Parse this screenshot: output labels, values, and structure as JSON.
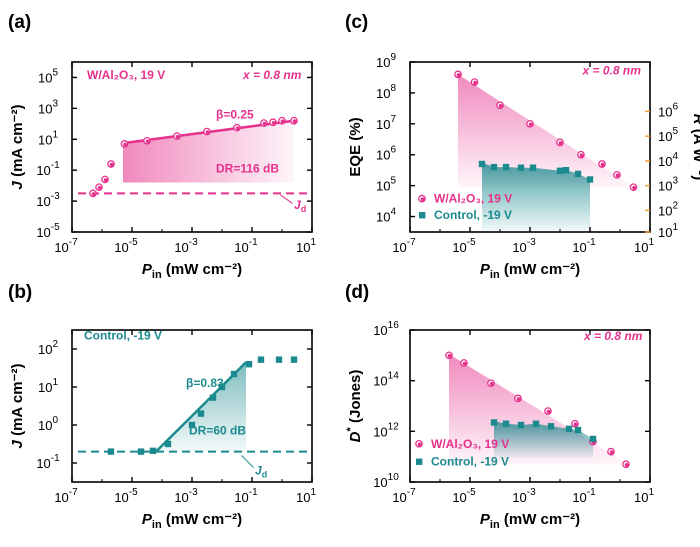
{
  "colors": {
    "pink": "#e5318c",
    "teal": "#1b8a8e",
    "orange": "#f39a29",
    "black": "#000000"
  },
  "chart_data": [
    {
      "id": "a",
      "panel_label": "(a)",
      "type": "scatter",
      "title": "",
      "xlabel_main": "P",
      "xlabel_sub": "in",
      "xlabel_unit": " (mW cm⁻²)",
      "ylabel_main": "J",
      "ylabel_unit": " (mA cm⁻²)",
      "xlim_log": [
        -7,
        1
      ],
      "ylim_log": [
        -5,
        6
      ],
      "xticks": [
        {
          "e": -7,
          "text": "-7"
        },
        {
          "e": -5,
          "text": "-5"
        },
        {
          "e": -3,
          "text": "-3"
        },
        {
          "e": -1,
          "text": "-1"
        },
        {
          "e": 1,
          "text": "1"
        }
      ],
      "yticks": [
        {
          "e": -5,
          "text": "-5"
        },
        {
          "e": -3,
          "text": "-3"
        },
        {
          "e": -1,
          "text": "-1"
        },
        {
          "e": 1,
          "text": "1"
        },
        {
          "e": 3,
          "text": "3"
        },
        {
          "e": 5,
          "text": "5"
        }
      ],
      "series": [
        {
          "name": "W/Al2O3, 19 V",
          "color": "pink",
          "marker": "circle",
          "points": [
            [
              -6.3,
              -2.5
            ],
            [
              -6.1,
              -2.1
            ],
            [
              -5.9,
              -1.6
            ],
            [
              -5.7,
              -0.6
            ],
            [
              -5.25,
              0.7
            ],
            [
              -4.5,
              0.9
            ],
            [
              -3.5,
              1.2
            ],
            [
              -2.5,
              1.5
            ],
            [
              -1.5,
              1.75
            ],
            [
              -0.6,
              2.05
            ],
            [
              -0.3,
              2.1
            ],
            [
              0,
              2.2
            ],
            [
              0.4,
              2.2
            ]
          ]
        }
      ],
      "fit_line": {
        "color": "pink",
        "points": [
          [
            -5.3,
            0.75
          ],
          [
            0.4,
            2.2
          ]
        ]
      },
      "shade": {
        "color": "pink",
        "polygon": [
          [
            -5.3,
            0.75
          ],
          [
            0.4,
            2.2
          ],
          [
            0.4,
            -1.8
          ],
          [
            -5.3,
            -1.8
          ]
        ],
        "opacity": 0.6
      },
      "dashed": {
        "color": "pink",
        "y": -2.5,
        "x1": -6.8,
        "x2": 1
      },
      "annotations": [
        {
          "text": "W/Al₂O₃, 19 V",
          "x": -6.5,
          "y": 4.9,
          "color": "pink",
          "size": 12
        },
        {
          "text": "x = 0.8 nm",
          "x": -1.3,
          "y": 4.9,
          "color": "pink",
          "size": 12,
          "italic": true
        },
        {
          "text": "β=0.25",
          "x": -2.2,
          "y": 2.35,
          "color": "pink",
          "size": 15
        },
        {
          "text": "DR=116 dB",
          "x": -2.2,
          "y": -1.15,
          "color": "pink",
          "size": 12
        },
        {
          "text": "J",
          "x": 0.4,
          "y": -3.5,
          "color": "pink",
          "size": 12,
          "italic": true,
          "sub": "d"
        }
      ]
    },
    {
      "id": "b",
      "panel_label": "(b)",
      "type": "scatter",
      "xlabel_main": "P",
      "xlabel_sub": "in",
      "xlabel_unit": " (mW cm⁻²)",
      "ylabel_main": "J",
      "ylabel_unit": " (mA cm⁻²)",
      "xlim_log": [
        -7,
        1
      ],
      "ylim_log": [
        -1.5,
        2.5
      ],
      "xticks": [
        {
          "e": -7,
          "text": "-7"
        },
        {
          "e": -5,
          "text": "-5"
        },
        {
          "e": -3,
          "text": "-3"
        },
        {
          "e": -1,
          "text": "-1"
        },
        {
          "e": 1,
          "text": "1"
        }
      ],
      "yticks": [
        {
          "e": -1,
          "text": "-1"
        },
        {
          "e": 0,
          "text": "0"
        },
        {
          "e": 1,
          "text": "1"
        },
        {
          "e": 2,
          "text": "2"
        }
      ],
      "series": [
        {
          "name": "Control, -19 V",
          "color": "teal",
          "marker": "square",
          "points": [
            [
              -5.7,
              -0.7
            ],
            [
              -4.7,
              -0.7
            ],
            [
              -4.3,
              -0.68
            ],
            [
              -3.8,
              -0.5
            ],
            [
              -3.0,
              0.0
            ],
            [
              -2.7,
              0.3
            ],
            [
              -2.3,
              0.72
            ],
            [
              -2.0,
              1.0
            ],
            [
              -1.6,
              1.34
            ],
            [
              -1.1,
              1.6
            ],
            [
              -0.7,
              1.72
            ],
            [
              -0.1,
              1.72
            ],
            [
              0.4,
              1.72
            ]
          ]
        }
      ],
      "fit_line": {
        "color": "teal",
        "points": [
          [
            -4.2,
            -0.7
          ],
          [
            -1.2,
            1.65
          ]
        ]
      },
      "shade": {
        "color": "teal",
        "polygon": [
          [
            -4.2,
            -0.7
          ],
          [
            -1.2,
            1.65
          ],
          [
            -1.2,
            -0.7
          ]
        ],
        "opacity": 0.6
      },
      "dashed": {
        "color": "teal",
        "y": -0.7,
        "x1": -6.8,
        "x2": 1
      },
      "annotations": [
        {
          "text": "Control, -19 V",
          "x": -6.6,
          "y": 2.25,
          "color": "teal",
          "size": 12
        },
        {
          "text": "β=0.83",
          "x": -3.2,
          "y": 1.0,
          "color": "teal",
          "size": 15
        },
        {
          "text": "DR=60 dB",
          "x": -3.1,
          "y": -0.25,
          "color": "teal",
          "size": 12
        },
        {
          "text": "J",
          "x": -0.9,
          "y": -1.3,
          "color": "teal",
          "size": 12,
          "italic": true,
          "sub": "d"
        }
      ]
    },
    {
      "id": "c",
      "panel_label": "(c)",
      "type": "scatter",
      "xlabel_main": "P",
      "xlabel_sub": "in",
      "xlabel_unit": " (mW cm⁻²)",
      "ylabel_left": "EQE (%)",
      "ylabel_right_main": "R",
      "ylabel_right_unit": " (A W⁻¹)",
      "xlim_log": [
        -7,
        1
      ],
      "ylim_log": [
        3.5,
        9
      ],
      "xticks": [
        {
          "e": -7,
          "text": "-7"
        },
        {
          "e": -5,
          "text": "-5"
        },
        {
          "e": -3,
          "text": "-3"
        },
        {
          "e": -1,
          "text": "-1"
        },
        {
          "e": 1,
          "text": "1"
        }
      ],
      "yticks": [
        {
          "e": 4,
          "text": "4"
        },
        {
          "e": 5,
          "text": "5"
        },
        {
          "e": 6,
          "text": "6"
        },
        {
          "e": 7,
          "text": "7"
        },
        {
          "e": 8,
          "text": "8"
        },
        {
          "e": 9,
          "text": "9"
        }
      ],
      "right_yticks": [
        {
          "e": 1,
          "text": "1",
          "pos": 3.5
        },
        {
          "e": 2,
          "text": "2",
          "pos": 4.2
        },
        {
          "e": 3,
          "text": "3",
          "pos": 5.0
        },
        {
          "e": 4,
          "text": "4",
          "pos": 5.8
        },
        {
          "e": 5,
          "text": "5",
          "pos": 6.6
        },
        {
          "e": 6,
          "text": "6",
          "pos": 7.4
        }
      ],
      "series": [
        {
          "name": "W/Al2O3, 19 V",
          "color": "pink",
          "marker": "circle",
          "points": [
            [
              -5.4,
              8.6
            ],
            [
              -4.85,
              8.35
            ],
            [
              -4.0,
              7.6
            ],
            [
              -3.0,
              7.0
            ],
            [
              -2.0,
              6.4
            ],
            [
              -1.3,
              6.0
            ],
            [
              -0.6,
              5.7
            ],
            [
              -0.1,
              5.35
            ],
            [
              0.45,
              4.95
            ]
          ]
        },
        {
          "name": "Control, -19 V",
          "color": "teal",
          "marker": "square",
          "points": [
            [
              -4.6,
              5.7
            ],
            [
              -4.2,
              5.6
            ],
            [
              -3.8,
              5.6
            ],
            [
              -3.3,
              5.58
            ],
            [
              -2.9,
              5.58
            ],
            [
              -2.0,
              5.48
            ],
            [
              -1.8,
              5.5
            ],
            [
              -1.4,
              5.38
            ],
            [
              -1.0,
              5.2
            ]
          ]
        }
      ],
      "shade": [
        {
          "color": "pink",
          "polygon": [
            [
              -5.4,
              8.6
            ],
            [
              0.45,
              4.95
            ],
            [
              -5.4,
              4.95
            ]
          ],
          "opacity": 0.6
        },
        {
          "color": "teal",
          "polygon": [
            [
              -4.6,
              5.75
            ],
            [
              -4.2,
              5.6
            ],
            [
              -3.8,
              5.6
            ],
            [
              -3.3,
              5.58
            ],
            [
              -2.9,
              5.58
            ],
            [
              -2.0,
              5.48
            ],
            [
              -1.8,
              5.5
            ],
            [
              -1.4,
              5.38
            ],
            [
              -1.0,
              5.2
            ],
            [
              -1.0,
              3.55
            ],
            [
              -4.6,
              3.55
            ]
          ],
          "opacity": 0.85
        }
      ],
      "legend": [
        {
          "text": "W/Al₂O₃, 19 V",
          "color": "pink",
          "marker": "circle",
          "x": -6.8,
          "y": 4.45
        },
        {
          "text": "Control, -19 V",
          "color": "teal",
          "marker": "square",
          "x": -6.8,
          "y": 3.92
        }
      ],
      "annotations": [
        {
          "text": "x = 0.8 nm",
          "x": -1.25,
          "y": 8.6,
          "color": "pink",
          "size": 12,
          "italic": true
        }
      ]
    },
    {
      "id": "d",
      "panel_label": "(d)",
      "type": "scatter",
      "xlabel_main": "P",
      "xlabel_sub": "in",
      "xlabel_unit": " (mW cm⁻²)",
      "ylabel_main": "D",
      "ylabel_sup": "*",
      "ylabel_unit": " (Jones)",
      "xlim_log": [
        -7,
        1
      ],
      "ylim_log": [
        10,
        16
      ],
      "xticks": [
        {
          "e": -7,
          "text": "-7"
        },
        {
          "e": -5,
          "text": "-5"
        },
        {
          "e": -3,
          "text": "-3"
        },
        {
          "e": -1,
          "text": "-1"
        },
        {
          "e": 1,
          "text": "1"
        }
      ],
      "yticks": [
        {
          "e": 10,
          "text": "10"
        },
        {
          "e": 12,
          "text": "12"
        },
        {
          "e": 14,
          "text": "14"
        },
        {
          "e": 16,
          "text": "16"
        }
      ],
      "series": [
        {
          "name": "W/Al2O3, 19 V",
          "color": "pink",
          "marker": "circle",
          "points": [
            [
              -5.7,
              15.0
            ],
            [
              -5.2,
              14.7
            ],
            [
              -4.3,
              13.9
            ],
            [
              -3.4,
              13.3
            ],
            [
              -2.4,
              12.8
            ],
            [
              -1.5,
              12.3
            ],
            [
              -0.9,
              11.6
            ],
            [
              -0.3,
              11.2
            ],
            [
              0.2,
              10.7
            ]
          ]
        },
        {
          "name": "Control, -19 V",
          "color": "teal",
          "marker": "square",
          "points": [
            [
              -4.2,
              12.35
            ],
            [
              -3.8,
              12.3
            ],
            [
              -3.3,
              12.25
            ],
            [
              -2.8,
              12.3
            ],
            [
              -2.3,
              12.2
            ],
            [
              -1.7,
              12.1
            ],
            [
              -1.4,
              12.05
            ],
            [
              -0.9,
              11.7
            ]
          ]
        }
      ],
      "shade": [
        {
          "color": "pink",
          "polygon": [
            [
              -5.7,
              15.05
            ],
            [
              0.25,
              10.7
            ],
            [
              -5.7,
              10.7
            ]
          ],
          "opacity": 0.6
        },
        {
          "color": "teal",
          "polygon": [
            [
              -4.2,
              12.4
            ],
            [
              -3.8,
              12.3
            ],
            [
              -3.3,
              12.25
            ],
            [
              -2.8,
              12.3
            ],
            [
              -2.3,
              12.2
            ],
            [
              -1.7,
              12.1
            ],
            [
              -1.4,
              12.05
            ],
            [
              -0.9,
              11.7
            ],
            [
              -0.9,
              10.95
            ],
            [
              -4.2,
              10.95
            ]
          ],
          "opacity": 0.85
        }
      ],
      "legend": [
        {
          "text": "W/Al₂O₃, 19 V",
          "color": "pink",
          "marker": "circle",
          "x": -6.9,
          "y": 11.35
        },
        {
          "text": "Control, -19 V",
          "color": "teal",
          "marker": "square",
          "x": -6.9,
          "y": 10.65
        }
      ],
      "annotations": [
        {
          "text": "x = 0.8 nm",
          "x": -1.2,
          "y": 15.6,
          "color": "pink",
          "size": 12,
          "italic": true
        }
      ]
    }
  ]
}
